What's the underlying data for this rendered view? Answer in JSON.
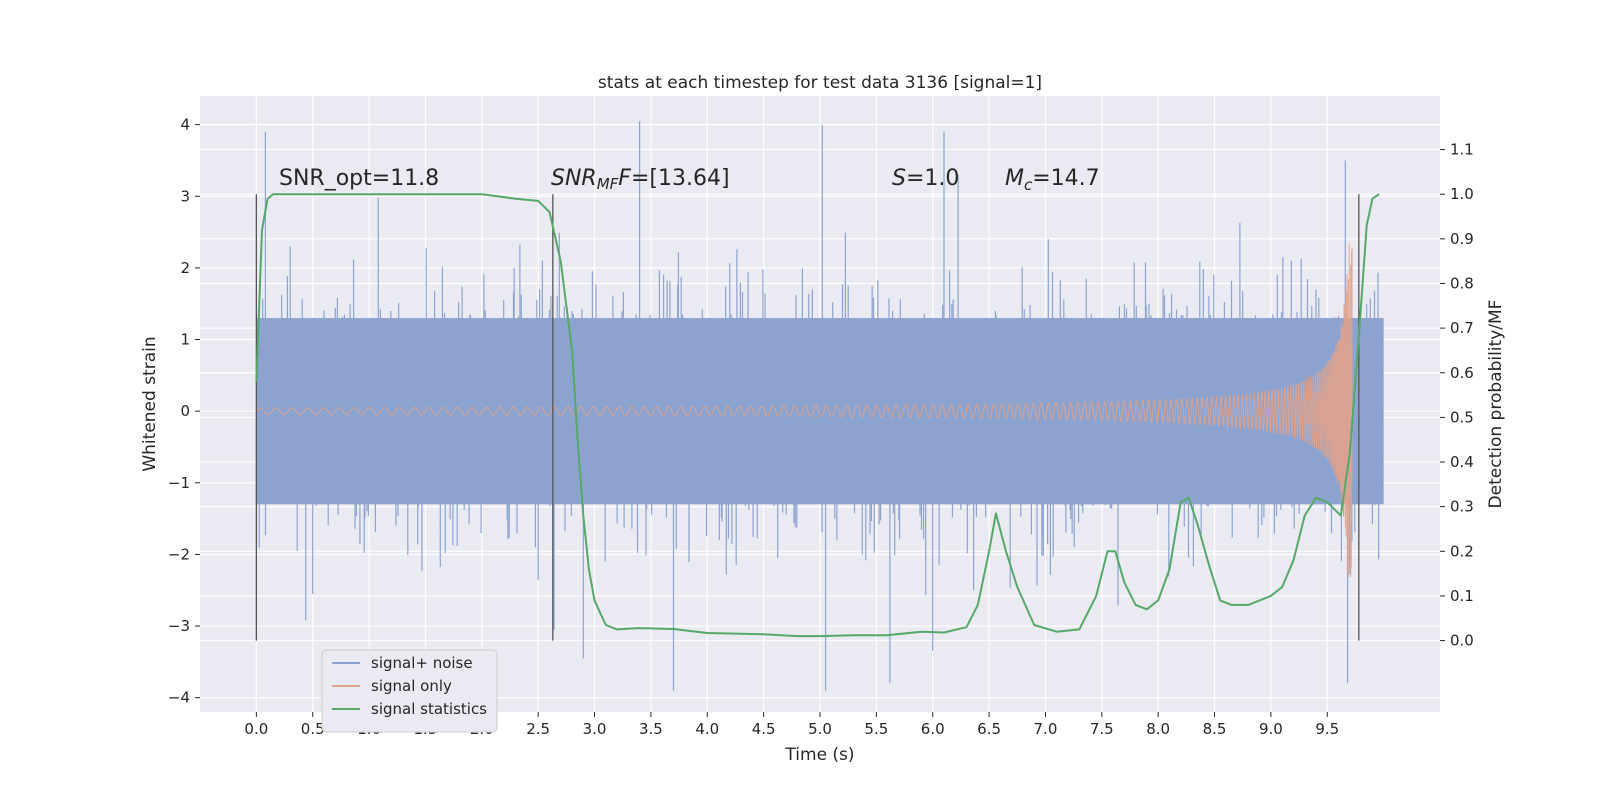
{
  "chart_data": {
    "type": "line",
    "title": "stats at each timestep for test data 3136 [signal=1]",
    "xlabel": "Time (s)",
    "ylabel": "Whitened strain",
    "y2label": "Detection probability/MF",
    "xlim": [
      -0.5,
      10.5
    ],
    "ylim": [
      -4.2,
      4.4
    ],
    "y2lim": [
      -0.16,
      1.22
    ],
    "xticks": [
      "0.0",
      "0.5",
      "1.0",
      "1.5",
      "2.0",
      "2.5",
      "3.0",
      "3.5",
      "4.0",
      "4.5",
      "5.0",
      "5.5",
      "6.0",
      "6.5",
      "7.0",
      "7.5",
      "8.0",
      "8.5",
      "9.0",
      "9.5"
    ],
    "yticks": [
      "4",
      "3",
      "2",
      "1",
      "0",
      "−1",
      "−2",
      "−3",
      "−4"
    ],
    "y2ticks": [
      "1.1",
      "1.0",
      "0.9",
      "0.8",
      "0.7",
      "0.6",
      "0.5",
      "0.4",
      "0.3",
      "0.2",
      "0.1",
      "0.0"
    ],
    "grid": true,
    "legend_position": "lower-left",
    "annotations": {
      "snr_opt": "SNR_opt=11.8",
      "snr_mf_sym": "SNR",
      "snr_mf_sub": "MF",
      "snr_mf_val": "=[13.64]",
      "s_sym": "S",
      "s_val": "=1.0",
      "mc_sym": "M",
      "mc_sub": "c",
      "mc_val": "=14.7"
    },
    "vlines_x": [
      0.0,
      2.63,
      9.78
    ],
    "series": [
      {
        "name": "signal+ noise",
        "color": "#8da3cf",
        "x_range": [
          0.0,
          10.0
        ],
        "band": {
          "lower": -1.3,
          "upper": 1.3
        },
        "extreme_peaks": [
          [
            0.08,
            3.9
          ],
          [
            3.4,
            4.05
          ],
          [
            5.02,
            3.99
          ],
          [
            6.1,
            3.9
          ],
          [
            9.66,
            3.5
          ],
          [
            2.64,
            -3.05
          ],
          [
            2.9,
            -3.45
          ],
          [
            3.7,
            -3.9
          ],
          [
            5.05,
            -3.9
          ],
          [
            5.62,
            -3.8
          ],
          [
            6.0,
            -3.35
          ],
          [
            9.68,
            -3.8
          ]
        ]
      },
      {
        "name": "signal only",
        "color": "#e0a38b",
        "x_range": [
          0.0,
          9.72
        ],
        "merger_time": 9.72
      },
      {
        "name": "signal statistics",
        "color": "#55a868",
        "axis": "y2",
        "x": [
          0.0,
          0.05,
          0.1,
          0.15,
          0.2,
          0.3,
          0.5,
          1.0,
          1.5,
          2.0,
          2.3,
          2.5,
          2.6,
          2.7,
          2.8,
          2.85,
          2.9,
          2.95,
          3.0,
          3.1,
          3.2,
          3.4,
          3.7,
          4.0,
          4.5,
          4.8,
          5.0,
          5.3,
          5.6,
          5.9,
          6.1,
          6.3,
          6.4,
          6.5,
          6.56,
          6.65,
          6.75,
          6.9,
          7.1,
          7.3,
          7.45,
          7.55,
          7.62,
          7.7,
          7.8,
          7.9,
          8.0,
          8.1,
          8.2,
          8.27,
          8.35,
          8.45,
          8.55,
          8.65,
          8.8,
          9.0,
          9.1,
          9.2,
          9.3,
          9.4,
          9.5,
          9.62,
          9.7,
          9.78,
          9.85,
          9.9,
          9.96
        ],
        "y": [
          0.58,
          0.92,
          0.99,
          1.0,
          1.0,
          1.0,
          1.0,
          1.0,
          1.0,
          1.0,
          0.99,
          0.985,
          0.96,
          0.85,
          0.65,
          0.45,
          0.28,
          0.16,
          0.09,
          0.035,
          0.025,
          0.028,
          0.026,
          0.017,
          0.014,
          0.01,
          0.01,
          0.012,
          0.012,
          0.02,
          0.018,
          0.03,
          0.08,
          0.2,
          0.285,
          0.2,
          0.12,
          0.035,
          0.02,
          0.025,
          0.1,
          0.2,
          0.2,
          0.13,
          0.08,
          0.07,
          0.09,
          0.16,
          0.31,
          0.32,
          0.26,
          0.17,
          0.09,
          0.08,
          0.08,
          0.1,
          0.12,
          0.18,
          0.28,
          0.32,
          0.31,
          0.28,
          0.42,
          0.68,
          0.93,
          0.99,
          1.0
        ]
      }
    ]
  }
}
